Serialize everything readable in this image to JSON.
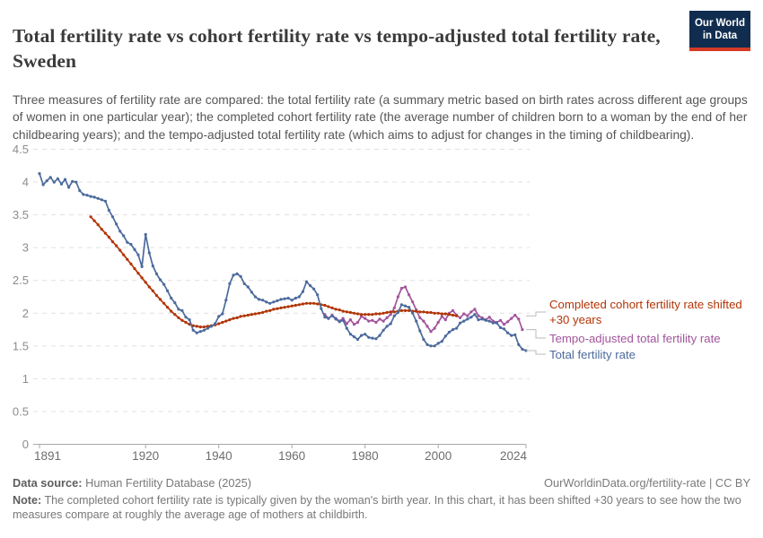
{
  "header": {
    "title": "Total fertility rate vs cohort fertility rate vs tempo-adjusted total fertility rate, Sweden",
    "subtitle": "Three measures of fertility rate are compared: the total fertility rate (a summary metric based on birth rates across different age groups of women in one particular year); the completed cohort fertility rate (the average number of children born to a woman by the end of her childbearing years); and the tempo-adjusted total fertility rate (which aims to adjust for changes in the timing of childbearing).",
    "logo_line1": "Our World",
    "logo_line2": "in Data",
    "logo_bg": "#102d50",
    "logo_bar": "#d53a26"
  },
  "chart_data": {
    "type": "line",
    "title": "Total fertility rate vs cohort fertility rate vs tempo-adjusted total fertility rate, Sweden",
    "xlabel": "",
    "ylabel": "",
    "xlim": [
      1891,
      2024
    ],
    "ylim": [
      0,
      4.5
    ],
    "xticks": [
      1891,
      1920,
      1940,
      1960,
      1980,
      2000,
      2024
    ],
    "yticks": [
      0,
      0.5,
      1,
      1.5,
      2,
      2.5,
      3,
      3.5,
      4,
      4.5
    ],
    "grid": "horizontal-dashed",
    "legend_position": "right",
    "series": [
      {
        "name": "Tempo-adjusted total fertility rate",
        "color": "#A2559C",
        "start_year": 1969,
        "values": [
          1.98,
          1.92,
          1.97,
          1.92,
          1.88,
          1.92,
          1.84,
          1.9,
          1.83,
          1.86,
          1.95,
          1.92,
          1.88,
          1.89,
          1.86,
          1.91,
          1.88,
          1.93,
          1.98,
          2.08,
          2.25,
          2.38,
          2.4,
          2.28,
          2.17,
          2.05,
          1.93,
          1.88,
          1.8,
          1.72,
          1.77,
          1.86,
          1.95,
          1.9,
          2.0,
          2.04,
          1.97,
          1.93,
          1.99,
          1.96,
          2.02,
          2.06,
          1.96,
          1.93,
          1.9,
          1.94,
          1.88,
          1.86,
          1.89,
          1.83,
          1.87,
          1.92,
          1.97,
          1.91,
          1.75
        ]
      },
      {
        "name": "Completed cohort fertility rate shifted +30 years",
        "color": "#B13507",
        "start_year": 1905,
        "values": [
          3.47,
          3.41,
          3.35,
          3.28,
          3.22,
          3.16,
          3.09,
          3.03,
          2.96,
          2.89,
          2.82,
          2.75,
          2.68,
          2.61,
          2.54,
          2.47,
          2.4,
          2.34,
          2.27,
          2.21,
          2.15,
          2.09,
          2.03,
          1.98,
          1.93,
          1.89,
          1.86,
          1.83,
          1.81,
          1.8,
          1.79,
          1.79,
          1.8,
          1.81,
          1.82,
          1.84,
          1.86,
          1.88,
          1.9,
          1.92,
          1.93,
          1.95,
          1.96,
          1.97,
          1.98,
          1.99,
          2.0,
          2.01,
          2.03,
          2.04,
          2.06,
          2.07,
          2.08,
          2.09,
          2.1,
          2.11,
          2.12,
          2.13,
          2.14,
          2.15,
          2.15,
          2.15,
          2.14,
          2.13,
          2.12,
          2.1,
          2.08,
          2.06,
          2.05,
          2.03,
          2.02,
          2.01,
          2.0,
          1.99,
          1.98,
          1.98,
          1.98,
          1.98,
          1.99,
          1.99,
          2.0,
          2.01,
          2.02,
          2.02,
          2.03,
          2.04,
          2.04,
          2.04,
          2.03,
          2.03,
          2.02,
          2.02,
          2.01,
          2.01,
          2.0,
          2.0,
          1.99,
          1.99,
          1.98,
          1.97,
          1.96
        ]
      },
      {
        "name": "Total fertility rate",
        "color": "#4C6A9C",
        "start_year": 1891,
        "values": [
          4.13,
          3.96,
          4.02,
          4.07,
          4.0,
          4.05,
          3.97,
          4.04,
          3.92,
          4.01,
          4.0,
          3.87,
          3.81,
          3.8,
          3.78,
          3.77,
          3.75,
          3.73,
          3.71,
          3.57,
          3.47,
          3.36,
          3.25,
          3.18,
          3.08,
          3.05,
          2.97,
          2.89,
          2.71,
          3.2,
          2.92,
          2.72,
          2.6,
          2.51,
          2.44,
          2.34,
          2.23,
          2.16,
          2.06,
          2.04,
          1.94,
          1.9,
          1.74,
          1.7,
          1.72,
          1.74,
          1.77,
          1.8,
          1.84,
          1.95,
          1.99,
          2.2,
          2.45,
          2.58,
          2.6,
          2.56,
          2.45,
          2.4,
          2.32,
          2.25,
          2.21,
          2.2,
          2.17,
          2.15,
          2.17,
          2.19,
          2.21,
          2.22,
          2.23,
          2.2,
          2.23,
          2.25,
          2.33,
          2.48,
          2.42,
          2.37,
          2.28,
          2.07,
          1.94,
          1.92,
          1.96,
          1.91,
          1.87,
          1.89,
          1.77,
          1.68,
          1.64,
          1.6,
          1.66,
          1.68,
          1.63,
          1.62,
          1.61,
          1.66,
          1.74,
          1.8,
          1.84,
          1.96,
          2.01,
          2.13,
          2.11,
          2.09,
          2.0,
          1.88,
          1.73,
          1.6,
          1.52,
          1.5,
          1.5,
          1.54,
          1.57,
          1.65,
          1.71,
          1.75,
          1.77,
          1.85,
          1.88,
          1.91,
          1.94,
          1.98,
          1.9,
          1.91,
          1.89,
          1.88,
          1.85,
          1.85,
          1.78,
          1.76,
          1.7,
          1.66,
          1.67,
          1.52,
          1.45,
          1.43
        ]
      }
    ]
  },
  "legend": {
    "entries": [
      {
        "label": "Completed cohort fertility rate shifted +30 years",
        "color": "#B13507"
      },
      {
        "label": "Tempo-adjusted total fertility rate",
        "color": "#A2559C"
      },
      {
        "label": "Total fertility rate",
        "color": "#4C6A9C"
      }
    ]
  },
  "footer": {
    "source_label": "Data source:",
    "source_value": " Human Fertility Database (2025)",
    "cite": "OurWorldinData.org/fertility-rate | CC BY",
    "note_label": "Note:",
    "note_text": " The completed cohort fertility rate is typically given by the woman's birth year. In this chart, it has been shifted +30 years to see how the two measures compare at roughly the average age of mothers at childbirth."
  }
}
